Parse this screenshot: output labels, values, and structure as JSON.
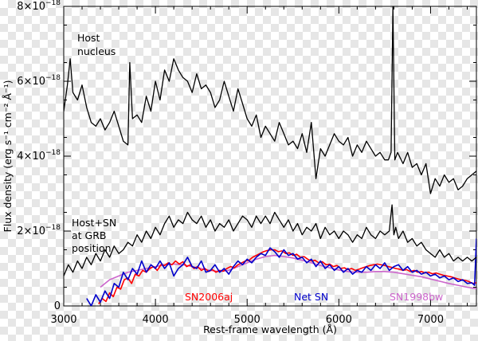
{
  "chart_data": {
    "type": "line",
    "title": "",
    "xlabel": "Rest-frame wavelength (Å)",
    "ylabel": "Flux density (erg s⁻¹ cm⁻² Å⁻¹)",
    "xlim": [
      3000,
      7500
    ],
    "ylim": [
      0,
      8e-18
    ],
    "x_ticks": [
      3000,
      4000,
      5000,
      6000,
      7000
    ],
    "x_tick_labels": [
      "3000",
      "4000",
      "5000",
      "6000",
      "7000"
    ],
    "y_ticks": [
      0,
      2e-18,
      4e-18,
      6e-18,
      8e-18
    ],
    "y_tick_labels": [
      {
        "base": "0",
        "exp": ""
      },
      {
        "base": "2×10",
        "exp": "−18"
      },
      {
        "base": "4×10",
        "exp": "−18"
      },
      {
        "base": "6×10",
        "exp": "−18"
      },
      {
        "base": "8×10",
        "exp": "−18"
      }
    ],
    "grid": false,
    "annotations": [
      {
        "id": "host-nucleus",
        "lines": [
          "Host",
          "nucleus"
        ]
      },
      {
        "id": "host-sn",
        "lines": [
          "Host+SN",
          "at GRB",
          "position"
        ]
      }
    ],
    "series": [
      {
        "id": "host-nucleus",
        "color": "#000000",
        "x": [
          3000,
          3040,
          3070,
          3100,
          3150,
          3200,
          3250,
          3300,
          3350,
          3400,
          3450,
          3500,
          3550,
          3600,
          3650,
          3700,
          3720,
          3750,
          3800,
          3850,
          3900,
          3950,
          4000,
          4050,
          4100,
          4150,
          4200,
          4250,
          4300,
          4350,
          4400,
          4450,
          4500,
          4550,
          4600,
          4650,
          4700,
          4750,
          4800,
          4850,
          4900,
          4950,
          5000,
          5050,
          5100,
          5150,
          5200,
          5250,
          5300,
          5350,
          5400,
          5450,
          5500,
          5550,
          5600,
          5650,
          5700,
          5750,
          5800,
          5850,
          5900,
          5950,
          6000,
          6050,
          6100,
          6150,
          6200,
          6250,
          6300,
          6350,
          6400,
          6450,
          6500,
          6540,
          6570,
          6590,
          6610,
          6640,
          6700,
          6750,
          6800,
          6850,
          6900,
          6950,
          7000,
          7050,
          7100,
          7150,
          7200,
          7250,
          7300,
          7350,
          7400,
          7450,
          7500
        ],
        "y": [
          5.2e-18,
          5.9e-18,
          6.6e-18,
          5.7e-18,
          5.5e-18,
          5.9e-18,
          5.3e-18,
          4.9e-18,
          4.8e-18,
          5e-18,
          4.7e-18,
          4.9e-18,
          5.2e-18,
          4.8e-18,
          4.4e-18,
          4.3e-18,
          6.5e-18,
          5e-18,
          5.1e-18,
          4.9e-18,
          5.6e-18,
          5.2e-18,
          6e-18,
          5.5e-18,
          6.3e-18,
          6e-18,
          6.6e-18,
          6.3e-18,
          6.1e-18,
          6e-18,
          5.7e-18,
          6.2e-18,
          5.8e-18,
          5.9e-18,
          5.7e-18,
          5.3e-18,
          5.5e-18,
          6e-18,
          5.6e-18,
          5.2e-18,
          5.8e-18,
          5.4e-18,
          5e-18,
          4.8e-18,
          5.1e-18,
          4.5e-18,
          4.8e-18,
          4.6e-18,
          4.4e-18,
          4.9e-18,
          4.6e-18,
          4.3e-18,
          4.4e-18,
          4.2e-18,
          4.6e-18,
          4.1e-18,
          4.9e-18,
          3.4e-18,
          4.2e-18,
          4e-18,
          4.3e-18,
          4.6e-18,
          4.4e-18,
          4.3e-18,
          4.5e-18,
          4e-18,
          4.3e-18,
          4.1e-18,
          4.4e-18,
          4.2e-18,
          4e-18,
          4.1e-18,
          3.9e-18,
          3.9e-18,
          4.1e-18,
          8e-18,
          3.9e-18,
          4.1e-18,
          3.8e-18,
          4.1e-18,
          3.7e-18,
          3.8e-18,
          3.5e-18,
          3.8e-18,
          3e-18,
          3.4e-18,
          3.2e-18,
          3.5e-18,
          3.3e-18,
          3.4e-18,
          3.1e-18,
          3.2e-18,
          3.4e-18,
          3.5e-18,
          3.6e-18
        ]
      },
      {
        "id": "host-plus-sn",
        "color": "#000000",
        "x": [
          3000,
          3050,
          3100,
          3150,
          3200,
          3250,
          3300,
          3350,
          3400,
          3450,
          3500,
          3550,
          3600,
          3650,
          3700,
          3750,
          3800,
          3850,
          3900,
          3950,
          4000,
          4050,
          4100,
          4150,
          4200,
          4250,
          4300,
          4350,
          4400,
          4450,
          4500,
          4550,
          4600,
          4650,
          4700,
          4750,
          4800,
          4850,
          4900,
          4950,
          5000,
          5050,
          5100,
          5150,
          5200,
          5250,
          5300,
          5350,
          5400,
          5450,
          5500,
          5550,
          5600,
          5650,
          5700,
          5750,
          5800,
          5850,
          5900,
          5950,
          6000,
          6050,
          6100,
          6150,
          6200,
          6250,
          6300,
          6350,
          6400,
          6450,
          6500,
          6550,
          6580,
          6600,
          6620,
          6650,
          6700,
          6750,
          6800,
          6850,
          6900,
          6950,
          7000,
          7050,
          7100,
          7150,
          7200,
          7250,
          7300,
          7350,
          7400,
          7450,
          7500
        ],
        "y": [
          8e-19,
          1.1e-18,
          9e-19,
          1.2e-18,
          1e-18,
          1.3e-18,
          1.1e-18,
          1.4e-18,
          1.2e-18,
          1.5e-18,
          1.3e-18,
          1.6e-18,
          1.4e-18,
          1.5e-18,
          1.7e-18,
          1.6e-18,
          1.9e-18,
          1.7e-18,
          2e-18,
          1.8e-18,
          2.1e-18,
          1.9e-18,
          2.2e-18,
          2.4e-18,
          2.1e-18,
          2.3e-18,
          2.2e-18,
          2.5e-18,
          2.3e-18,
          2.2e-18,
          2.4e-18,
          2.1e-18,
          2.3e-18,
          2e-18,
          2.2e-18,
          2.1e-18,
          2.3e-18,
          2e-18,
          2.2e-18,
          2.4e-18,
          2.3e-18,
          2.1e-18,
          2.4e-18,
          2.2e-18,
          2.4e-18,
          2.2e-18,
          2.5e-18,
          2.3e-18,
          2.1e-18,
          2.3e-18,
          2e-18,
          2.2e-18,
          1.9e-18,
          2.1e-18,
          2e-18,
          2.2e-18,
          1.8e-18,
          2.1e-18,
          1.9e-18,
          2e-18,
          1.8e-18,
          2e-18,
          1.9e-18,
          1.7e-18,
          1.9e-18,
          1.8e-18,
          2.1e-18,
          1.9e-18,
          1.8e-18,
          2e-18,
          1.9e-18,
          2e-18,
          2.7e-18,
          1.9e-18,
          2.1e-18,
          1.8e-18,
          2e-18,
          1.7e-18,
          1.8e-18,
          1.6e-18,
          1.7e-18,
          1.5e-18,
          1.4e-18,
          1.3e-18,
          1.5e-18,
          1.3e-18,
          1.4e-18,
          1.2e-18,
          1.3e-18,
          1.2e-18,
          1.3e-18,
          1.2e-18,
          1.3e-18
        ]
      },
      {
        "id": "sn2006aj",
        "name": "SN2006aj",
        "color": "#ff0000",
        "x": [
          3380,
          3420,
          3460,
          3500,
          3540,
          3580,
          3620,
          3660,
          3700,
          3740,
          3780,
          3820,
          3860,
          3900,
          3940,
          3980,
          4020,
          4060,
          4100,
          4140,
          4180,
          4220,
          4260,
          4300,
          4340,
          4380,
          4420,
          4460,
          4500,
          4540,
          4580,
          4620,
          4660,
          4700,
          4740,
          4780,
          4820,
          4860,
          4900,
          4940,
          4980,
          5020,
          5060,
          5100,
          5140,
          5180,
          5220,
          5260,
          5300,
          5340,
          5380,
          5420,
          5460,
          5500,
          5540,
          5580,
          5620,
          5660,
          5700,
          5740,
          5780,
          5820,
          5860,
          5900,
          5940,
          5980,
          6020,
          6060,
          6100,
          6140,
          6180,
          6220,
          6260,
          6300,
          6340,
          6380,
          6420,
          6460,
          6500,
          6540,
          6580,
          6620,
          6660,
          6700,
          6740,
          6780,
          6820,
          6860,
          6900,
          6940,
          6980,
          7020,
          7060,
          7100,
          7140,
          7180,
          7220,
          7260,
          7300,
          7340,
          7380,
          7420,
          7460,
          7500
        ],
        "y": [
          5e-20,
          2e-19,
          1.2e-19,
          3.5e-19,
          2.5e-19,
          5e-19,
          4.5e-19,
          7e-19,
          7.5e-19,
          6e-19,
          8.5e-19,
          8e-19,
          9.5e-19,
          9e-19,
          1e-18,
          1.05e-18,
          9.5e-19,
          1.1e-18,
          1.08e-18,
          1.15e-18,
          1.1e-18,
          1.2e-18,
          1.12e-18,
          1.18e-18,
          1.05e-18,
          1.1e-18,
          1e-18,
          1.05e-18,
          9.5e-19,
          1e-18,
          9.2e-19,
          9.7e-19,
          9e-19,
          9.5e-19,
          9.3e-19,
          1e-18,
          1.05e-18,
          1.02e-18,
          1.1e-18,
          1.15e-18,
          1.2e-18,
          1.22e-18,
          1.3e-18,
          1.35e-18,
          1.4e-18,
          1.45e-18,
          1.48e-18,
          1.5e-18,
          1.5e-18,
          1.45e-18,
          1.47e-18,
          1.4e-18,
          1.42e-18,
          1.35e-18,
          1.38e-18,
          1.3e-18,
          1.32e-18,
          1.25e-18,
          1.2e-18,
          1.22e-18,
          1.15e-18,
          1.18e-18,
          1.1e-18,
          1.12e-18,
          1.05e-18,
          1.08e-18,
          1e-18,
          1.02e-18,
          9.7e-19,
          1e-18,
          9.5e-19,
          9.8e-19,
          1.02e-18,
          1.05e-18,
          1.08e-18,
          1.1e-18,
          1.12e-18,
          1.1e-18,
          1.08e-18,
          1.05e-18,
          1.03e-18,
          1e-18,
          9.8e-19,
          9.5e-19,
          9.7e-19,
          9.2e-19,
          9.5e-19,
          9e-19,
          9.2e-19,
          8.8e-19,
          9e-19,
          8.6e-19,
          8.8e-19,
          8.5e-19,
          8.2e-19,
          8e-19,
          7.8e-19,
          7.5e-19,
          7.2e-19,
          7e-19,
          6.8e-19,
          6.5e-19,
          6e-19,
          6.2e-19
        ]
      },
      {
        "id": "net-sn",
        "name": "Net SN",
        "color": "#0000cc",
        "x": [
          3250,
          3300,
          3350,
          3400,
          3450,
          3500,
          3550,
          3600,
          3650,
          3700,
          3750,
          3800,
          3850,
          3900,
          3950,
          4000,
          4050,
          4100,
          4150,
          4200,
          4250,
          4300,
          4350,
          4400,
          4450,
          4500,
          4550,
          4600,
          4650,
          4700,
          4750,
          4800,
          4850,
          4900,
          4950,
          5000,
          5050,
          5100,
          5150,
          5200,
          5250,
          5300,
          5350,
          5400,
          5450,
          5500,
          5550,
          5600,
          5650,
          5700,
          5750,
          5800,
          5850,
          5900,
          5950,
          6000,
          6050,
          6100,
          6150,
          6200,
          6250,
          6300,
          6350,
          6400,
          6450,
          6500,
          6550,
          6600,
          6650,
          6700,
          6750,
          6800,
          6850,
          6900,
          6950,
          7000,
          7050,
          7100,
          7150,
          7200,
          7250,
          7300,
          7350,
          7400,
          7450,
          7480,
          7500
        ],
        "y": [
          2e-19,
          0.0,
          3e-19,
          1e-19,
          4e-19,
          2e-19,
          6e-19,
          5e-19,
          9e-19,
          7e-19,
          1e-18,
          8.5e-19,
          1.2e-18,
          9e-19,
          1.1e-18,
          1e-18,
          1.2e-18,
          1e-18,
          1.15e-18,
          8e-19,
          1e-18,
          1.1e-18,
          1.3e-18,
          1.05e-18,
          1e-18,
          1.2e-18,
          9e-19,
          9.5e-19,
          1.1e-18,
          9e-19,
          1e-18,
          8.5e-19,
          1.05e-18,
          1.2e-18,
          1.1e-18,
          1.25e-18,
          1.15e-18,
          1.3e-18,
          1.4e-18,
          1.35e-18,
          1.55e-18,
          1.45e-18,
          1.3e-18,
          1.5e-18,
          1.35e-18,
          1.4e-18,
          1.25e-18,
          1.3e-18,
          1.15e-18,
          1.25e-18,
          1.05e-18,
          1.2e-18,
          1e-18,
          1.1e-18,
          9.5e-19,
          1.05e-18,
          9e-19,
          1e-18,
          8.5e-19,
          9.5e-19,
          9e-19,
          1.05e-18,
          9.5e-19,
          1.1e-18,
          1e-18,
          1.15e-18,
          9.5e-19,
          1.05e-18,
          1.1e-18,
          9.5e-19,
          1.05e-18,
          9e-19,
          9.5e-19,
          8.5e-19,
          9e-19,
          8e-19,
          8.5e-19,
          7.5e-19,
          8e-19,
          7e-19,
          7.5e-19,
          6.5e-19,
          7e-19,
          6e-19,
          6.2e-19,
          5.5e-19,
          1.8e-18
        ]
      },
      {
        "id": "sn1998bw",
        "name": "SN1998bw",
        "color": "#cc66cc",
        "x": [
          3400,
          3500,
          3600,
          3700,
          3800,
          3900,
          4000,
          4100,
          4200,
          4300,
          4400,
          4500,
          4600,
          4700,
          4800,
          4900,
          5000,
          5100,
          5200,
          5300,
          5400,
          5500,
          5600,
          5700,
          5800,
          5900,
          6000,
          6100,
          6200,
          6300,
          6400,
          6500,
          6600,
          6700,
          6800,
          6900,
          7000,
          7100,
          7200,
          7300,
          7400,
          7500
        ],
        "y": [
          5e-19,
          7e-19,
          8e-19,
          9e-19,
          9.5e-19,
          1e-18,
          1.05e-18,
          1.1e-18,
          1.12e-18,
          1.1e-18,
          1.05e-18,
          1e-18,
          9.5e-19,
          9.2e-19,
          9.5e-19,
          1.05e-18,
          1.15e-18,
          1.25e-18,
          1.32e-18,
          1.35e-18,
          1.32e-18,
          1.28e-18,
          1.22e-18,
          1.15e-18,
          1.08e-18,
          1.02e-18,
          9.6e-19,
          9.2e-19,
          9e-19,
          9e-19,
          9.2e-19,
          9.2e-19,
          9e-19,
          8.6e-19,
          8.2e-19,
          7.8e-19,
          7.2e-19,
          6.6e-19,
          6e-19,
          5.5e-19,
          5e-19,
          4.6e-19
        ]
      }
    ]
  }
}
